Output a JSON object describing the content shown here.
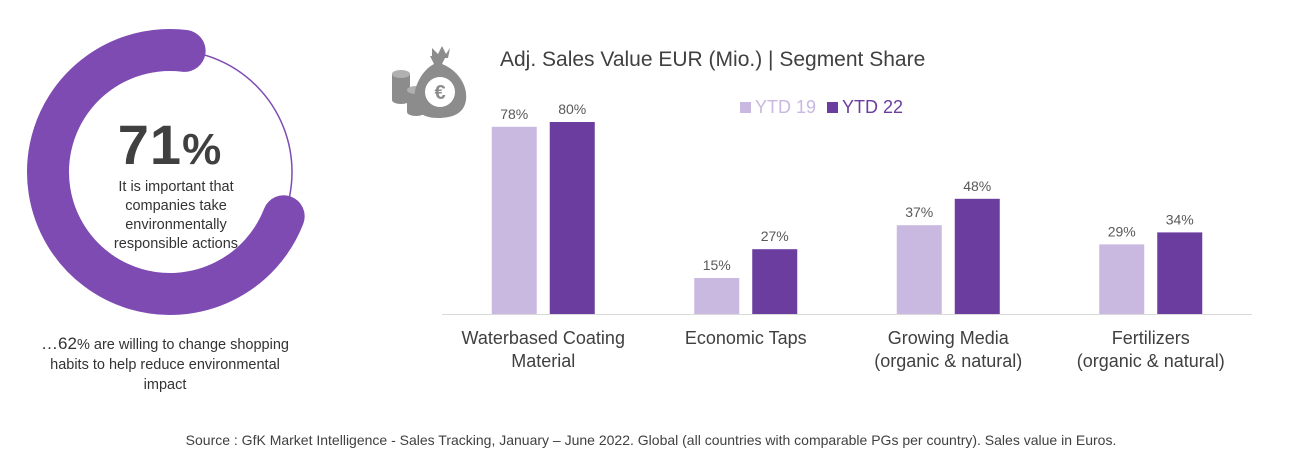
{
  "donut": {
    "percent_number": "71",
    "percent_sign": "%",
    "percent_value": 71,
    "caption": "It is important that companies take environmentally responsible actions",
    "note_lead": "…62",
    "note_rest": "% are willing to change shopping habits to help reduce environmental impact",
    "ring_color": "#7e4bb3",
    "track_color": "#7e4bb3"
  },
  "icon": "money-bag-euro-icon",
  "chart_data": {
    "type": "bar",
    "title": "Adj. Sales Value EUR (Mio.) | Segment Share",
    "categories": [
      [
        "Waterbased Coating",
        "Material"
      ],
      [
        "Economic Taps"
      ],
      [
        "Growing Media",
        "(organic & natural)"
      ],
      [
        "Fertilizers",
        "(organic & natural)"
      ]
    ],
    "series": [
      {
        "name": "YTD 19",
        "color": "#c9b8e0",
        "values": [
          78,
          15,
          37,
          29
        ],
        "labels": [
          "78%",
          "15%",
          "37%",
          "29%"
        ]
      },
      {
        "name": "YTD 22",
        "color": "#6a3d9e",
        "values": [
          80,
          27,
          48,
          34
        ],
        "labels": [
          "80%",
          "27%",
          "48%",
          "34%"
        ]
      }
    ],
    "ylim": [
      0,
      100
    ],
    "legend": "top"
  },
  "source": "Source : GfK Market Intelligence  - Sales Tracking, January – June 2022. Global (all countries with comparable PGs per country). Sales value in Euros."
}
